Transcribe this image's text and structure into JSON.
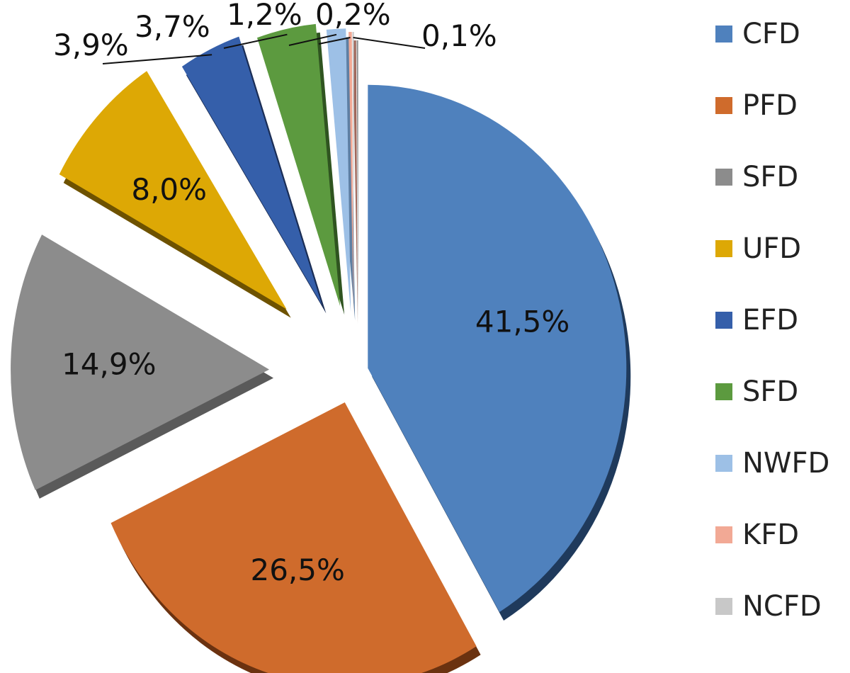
{
  "chart_data": {
    "type": "pie",
    "style": "exploded 3D pie",
    "series": [
      {
        "label": "CFD",
        "value": 41.5,
        "display": "41,5%",
        "color": "#4F81BD",
        "side": "#1F3A5C"
      },
      {
        "label": "PFD",
        "value": 26.5,
        "display": "26,5%",
        "color": "#CF6B2C",
        "side": "#6B3210"
      },
      {
        "label": "SFD",
        "value": 14.9,
        "display": "14,9%",
        "color": "#8C8C8C",
        "side": "#5A5A5A"
      },
      {
        "label": "UFD",
        "value": 8.0,
        "display": "8,0%",
        "color": "#DDA805",
        "side": "#6E5200"
      },
      {
        "label": "EFD",
        "value": 3.9,
        "display": "3,9%",
        "color": "#355FAA",
        "side": "#1A2D55"
      },
      {
        "label": "SFD",
        "value": 3.7,
        "display": "3,7%",
        "color": "#5C9A3F",
        "side": "#2F5420"
      },
      {
        "label": "NWFD",
        "value": 1.2,
        "display": "1,2%",
        "color": "#9DC0E6",
        "side": "#5E7FA3"
      },
      {
        "label": "KFD",
        "value": 0.2,
        "display": "0,2%",
        "color": "#F2A995",
        "side": "#A0675A"
      },
      {
        "label": "NCFD",
        "value": 0.1,
        "display": "0,1%",
        "color": "#C8C8C8",
        "side": "#8E8E8E"
      }
    ],
    "legend_position": "right"
  }
}
